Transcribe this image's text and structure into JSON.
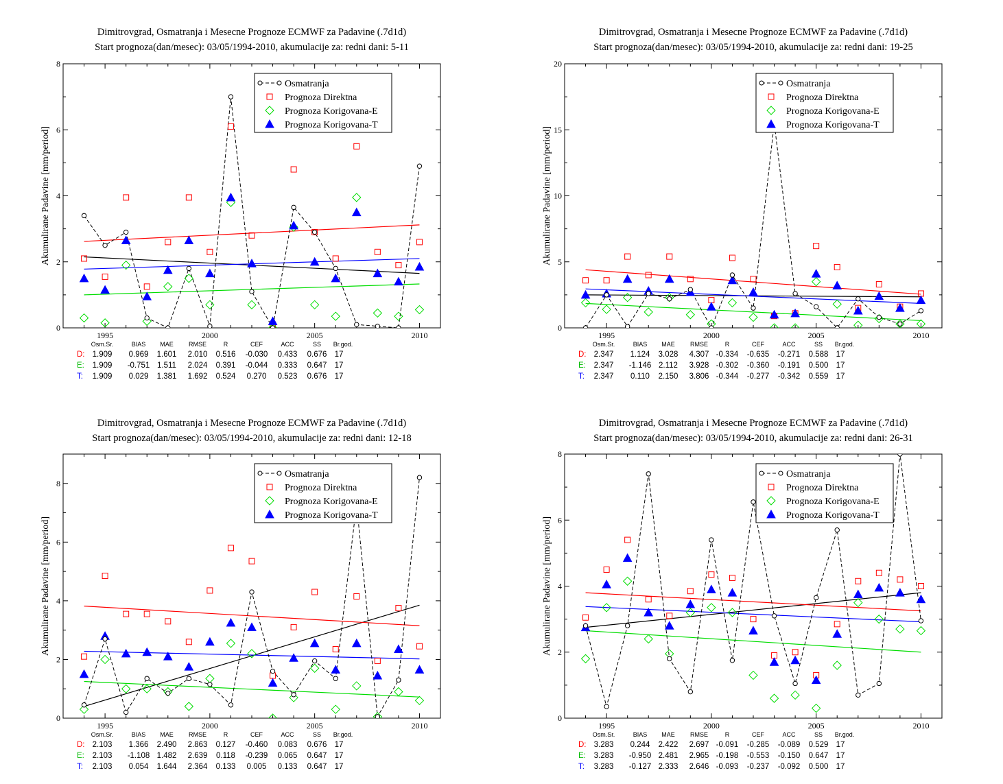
{
  "panel_title_line1": "Dimitrovgrad, Osmatranja i Mesecne Prognoze ECMWF za Padavine (.7d1d)",
  "ylabel": "Akumulirane Padavine [mm/period]",
  "legend": [
    "Osmatranja",
    "Prognoza Direktna",
    "Prognoza Korigovana-E",
    "Prognoza Korigovana-T"
  ],
  "stats_header": [
    "Osm.Sr.",
    "BIAS",
    "MAE",
    "RMSE",
    "R",
    "CEF",
    "ACC",
    "SS",
    "Br.god."
  ],
  "colors": {
    "obs": "#000000",
    "direct": "#ff0000",
    "corrE": "#00dd00",
    "corrT": "#0000ff"
  },
  "chart_data": [
    {
      "type": "scatter",
      "subtitle": "Start prognoza(dan/mesec): 03/05/1994-2010, akumulacije za: redni dani: 5-11",
      "xlim": [
        1993,
        2011
      ],
      "ylim": [
        0,
        8
      ],
      "yticks": [
        0,
        2,
        4,
        6,
        8
      ],
      "xticks": [
        1995,
        2000,
        2005,
        2010
      ],
      "x": [
        1994,
        1995,
        1996,
        1997,
        1998,
        1999,
        2000,
        2001,
        2002,
        2003,
        2004,
        2005,
        2006,
        2007,
        2008,
        2009,
        2010
      ],
      "series": [
        {
          "name": "Osmatranja",
          "values": [
            3.4,
            2.5,
            2.9,
            0.3,
            0.0,
            1.8,
            0.05,
            7.0,
            1.1,
            0.0,
            3.65,
            2.9,
            1.8,
            0.1,
            0.05,
            0.0,
            4.9
          ]
        },
        {
          "name": "Prognoza Direktna",
          "values": [
            2.1,
            1.55,
            3.95,
            1.25,
            2.6,
            3.95,
            2.3,
            6.1,
            2.8,
            0.1,
            4.8,
            2.9,
            2.1,
            5.5,
            2.3,
            1.9,
            2.6
          ]
        },
        {
          "name": "Prognoza Korigovana-E",
          "values": [
            0.3,
            0.15,
            1.9,
            0.2,
            1.25,
            1.5,
            0.7,
            3.8,
            0.7,
            0.0,
            3.05,
            0.7,
            0.35,
            3.95,
            0.45,
            0.35,
            0.55
          ]
        },
        {
          "name": "Prognoza Korigovana-T",
          "values": [
            1.5,
            1.15,
            2.65,
            0.95,
            1.75,
            2.65,
            1.65,
            3.95,
            1.95,
            0.2,
            3.1,
            2.0,
            1.5,
            3.5,
            1.65,
            1.4,
            1.85
          ]
        }
      ],
      "trends": {
        "obs": [
          2.15,
          1.65
        ],
        "direct": [
          2.62,
          3.12
        ],
        "corrE": [
          1.0,
          1.33
        ],
        "corrT": [
          1.78,
          2.1
        ]
      },
      "stats": [
        [
          "D:",
          "1.909",
          "0.969",
          "1.601",
          "2.010",
          "0.516",
          "-0.030",
          "0.433",
          "0.676",
          "17"
        ],
        [
          "E:",
          "1.909",
          "-0.751",
          "1.511",
          "2.024",
          "0.391",
          "-0.044",
          "0.333",
          "0.647",
          "17"
        ],
        [
          "T:",
          "1.909",
          "0.029",
          "1.381",
          "1.692",
          "0.524",
          "0.270",
          "0.523",
          "0.676",
          "17"
        ]
      ]
    },
    {
      "type": "scatter",
      "subtitle": "Start prognoza(dan/mesec): 03/05/1994-2010, akumulacije za: redni dani: 19-25",
      "xlim": [
        1993,
        2011
      ],
      "ylim": [
        0,
        20
      ],
      "yticks": [
        0,
        5,
        10,
        15,
        20
      ],
      "xticks": [
        1995,
        2000,
        2005,
        2010
      ],
      "x": [
        1994,
        1995,
        1996,
        1997,
        1998,
        1999,
        2000,
        2001,
        2002,
        2003,
        2004,
        2005,
        2006,
        2007,
        2008,
        2009,
        2010
      ],
      "series": [
        {
          "name": "Osmatranja",
          "values": [
            0.0,
            2.5,
            0.1,
            2.6,
            2.2,
            2.9,
            0.0,
            4.0,
            1.5,
            15.5,
            2.6,
            1.6,
            0.0,
            2.2,
            0.8,
            0.3,
            1.3
          ]
        },
        {
          "name": "Prognoza Direktna",
          "values": [
            3.6,
            3.6,
            5.4,
            4.0,
            5.4,
            3.7,
            2.1,
            5.3,
            3.7,
            0.9,
            1.1,
            6.2,
            4.6,
            1.5,
            3.3,
            1.6,
            2.6
          ]
        },
        {
          "name": "Prognoza Korigovana-E",
          "values": [
            1.9,
            1.4,
            2.3,
            1.2,
            2.3,
            1.0,
            0.3,
            1.9,
            0.8,
            0.0,
            0.0,
            3.5,
            1.8,
            0.2,
            0.7,
            0.3,
            0.3
          ]
        },
        {
          "name": "Prognoza Korigovana-T",
          "values": [
            2.5,
            2.6,
            3.7,
            2.8,
            3.7,
            2.7,
            1.6,
            3.6,
            2.7,
            1.0,
            1.1,
            4.1,
            3.2,
            1.3,
            2.4,
            1.5,
            2.1
          ]
        }
      ],
      "trends": {
        "obs": [
          2.5,
          2.35
        ],
        "direct": [
          4.4,
          2.55
        ],
        "corrE": [
          1.85,
          0.55
        ],
        "corrT": [
          2.95,
          1.85
        ]
      },
      "stats": [
        [
          "D:",
          "2.347",
          "1.124",
          "3.028",
          "4.307",
          "-0.334",
          "-0.635",
          "-0.271",
          "0.588",
          "17"
        ],
        [
          "E:",
          "2.347",
          "-1.146",
          "2.112",
          "3.928",
          "-0.302",
          "-0.360",
          "-0.191",
          "0.500",
          "17"
        ],
        [
          "T:",
          "2.347",
          "0.110",
          "2.150",
          "3.806",
          "-0.344",
          "-0.277",
          "-0.342",
          "0.559",
          "17"
        ]
      ]
    },
    {
      "type": "scatter",
      "subtitle": "Start prognoza(dan/mesec): 03/05/1994-2010, akumulacije za: redni dani: 12-18",
      "xlim": [
        1993,
        2011
      ],
      "ylim": [
        0,
        9
      ],
      "yticks": [
        0,
        2,
        4,
        6,
        8
      ],
      "xticks": [
        1995,
        2000,
        2005,
        2010
      ],
      "x": [
        1994,
        1995,
        1996,
        1997,
        1998,
        1999,
        2000,
        2001,
        2002,
        2003,
        2004,
        2005,
        2006,
        2007,
        2008,
        2009,
        2010
      ],
      "series": [
        {
          "name": "Osmatranja",
          "values": [
            0.45,
            2.7,
            0.2,
            1.35,
            0.85,
            1.35,
            1.15,
            0.45,
            4.3,
            1.6,
            0.8,
            1.95,
            1.35,
            7.3,
            0.05,
            1.3,
            8.2
          ]
        },
        {
          "name": "Prognoza Direktna",
          "values": [
            2.1,
            4.85,
            3.55,
            3.55,
            3.3,
            2.6,
            4.35,
            5.8,
            5.35,
            1.45,
            3.1,
            4.3,
            2.35,
            4.15,
            1.95,
            3.75,
            2.45
          ]
        },
        {
          "name": "Prognoza Korigovana-E",
          "values": [
            0.3,
            2.0,
            1.0,
            1.0,
            0.9,
            0.4,
            1.35,
            2.55,
            2.2,
            0.0,
            0.7,
            1.7,
            0.3,
            1.1,
            0.05,
            0.9,
            0.6
          ]
        },
        {
          "name": "Prognoza Korigovana-T",
          "values": [
            1.5,
            2.8,
            2.2,
            2.25,
            2.1,
            1.75,
            2.6,
            3.25,
            3.1,
            1.2,
            2.05,
            2.55,
            1.65,
            2.55,
            1.45,
            2.35,
            1.65
          ]
        }
      ],
      "trends": {
        "obs": [
          0.4,
          3.85
        ],
        "direct": [
          3.82,
          3.15
        ],
        "corrE": [
          1.25,
          0.72
        ],
        "corrT": [
          2.28,
          2.02
        ]
      },
      "stats": [
        [
          "D:",
          "2.103",
          "1.366",
          "2.490",
          "2.863",
          "0.127",
          "-0.460",
          "0.083",
          "0.676",
          "17"
        ],
        [
          "E:",
          "2.103",
          "-1.108",
          "1.482",
          "2.639",
          "0.118",
          "-0.239",
          "0.065",
          "0.647",
          "17"
        ],
        [
          "T:",
          "2.103",
          "0.054",
          "1.644",
          "2.364",
          "0.133",
          "0.005",
          "0.133",
          "0.647",
          "17"
        ]
      ]
    },
    {
      "type": "scatter",
      "subtitle": "Start prognoza(dan/mesec): 03/05/1994-2010, akumulacije za: redni dani: 26-31",
      "xlim": [
        1993,
        2011
      ],
      "ylim": [
        0,
        8
      ],
      "yticks": [
        0,
        2,
        4,
        6,
        8
      ],
      "xticks": [
        1995,
        2000,
        2005,
        2010
      ],
      "x": [
        1994,
        1995,
        1996,
        1997,
        1998,
        1999,
        2000,
        2001,
        2002,
        2003,
        2004,
        2005,
        2006,
        2007,
        2008,
        2009,
        2010
      ],
      "series": [
        {
          "name": "Osmatranja",
          "values": [
            2.8,
            0.35,
            2.8,
            7.4,
            1.8,
            0.8,
            5.4,
            1.75,
            6.55,
            3.1,
            1.05,
            3.65,
            5.7,
            0.7,
            1.05,
            8.0,
            2.95
          ]
        },
        {
          "name": "Prognoza Direktna",
          "values": [
            3.05,
            4.5,
            5.4,
            3.6,
            3.1,
            3.85,
            4.35,
            4.25,
            3.0,
            1.9,
            2.0,
            1.3,
            2.85,
            4.15,
            4.4,
            4.2,
            4.0
          ]
        },
        {
          "name": "Prognoza Korigovana-E",
          "values": [
            1.8,
            3.35,
            4.15,
            2.4,
            1.95,
            3.2,
            3.35,
            3.2,
            1.3,
            0.6,
            0.7,
            0.3,
            1.6,
            3.5,
            3.0,
            2.7,
            2.65
          ]
        },
        {
          "name": "Prognoza Korigovana-T",
          "values": [
            2.75,
            4.05,
            4.85,
            3.2,
            2.8,
            3.45,
            3.9,
            3.8,
            2.65,
            1.7,
            1.75,
            1.15,
            2.55,
            3.75,
            3.95,
            3.8,
            3.6
          ]
        }
      ],
      "trends": {
        "obs": [
          2.75,
          3.8
        ],
        "direct": [
          3.8,
          3.25
        ],
        "corrE": [
          2.65,
          2.0
        ],
        "corrT": [
          3.38,
          2.92
        ]
      },
      "stats": [
        [
          "D:",
          "3.283",
          "0.244",
          "2.422",
          "2.697",
          "-0.091",
          "-0.285",
          "-0.089",
          "0.529",
          "17"
        ],
        [
          "E:",
          "3.283",
          "-0.950",
          "2.481",
          "2.965",
          "-0.198",
          "-0.553",
          "-0.150",
          "0.647",
          "17"
        ],
        [
          "T:",
          "3.283",
          "-0.127",
          "2.333",
          "2.646",
          "-0.093",
          "-0.237",
          "-0.092",
          "0.500",
          "17"
        ]
      ]
    }
  ]
}
